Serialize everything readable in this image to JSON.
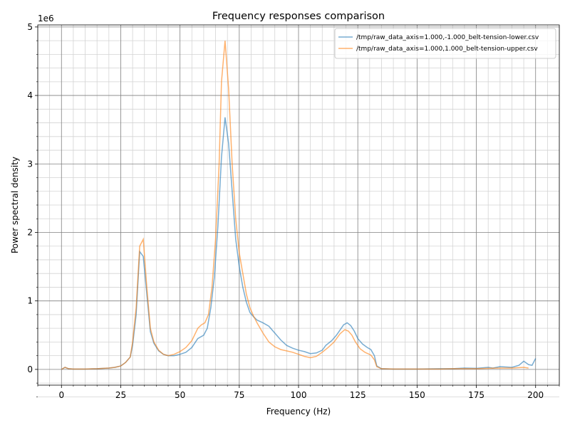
{
  "chart_data": {
    "type": "line",
    "title": "Frequency responses comparison",
    "x_label": "Frequency (Hz)",
    "y_label": "Power spectral density",
    "y_offset_label": "1e6",
    "xlim": [
      -10,
      210
    ],
    "xticks": [
      0,
      25,
      50,
      75,
      100,
      125,
      150,
      175,
      200
    ],
    "ylim": [
      -0.23,
      5.03
    ],
    "yticks": [
      0,
      1,
      2,
      3,
      4,
      5
    ],
    "grid": true,
    "minor_grid": true,
    "legend": "upper right",
    "line_alpha": 0.6,
    "series": [
      {
        "name": "/tmp/raw_data_axis=1.000,-1.000_belt-tension-lower.csv",
        "color": "#1f77b4",
        "x": [
          0,
          1.5,
          3,
          5,
          10,
          15,
          20,
          22.5,
          25,
          27,
          29,
          30,
          31.5,
          33,
          34.5,
          36,
          37.5,
          39,
          41,
          43,
          45,
          47.5,
          50,
          52.5,
          55,
          57.5,
          60,
          61.5,
          63,
          64.5,
          66,
          67.5,
          69,
          70.5,
          72,
          73.5,
          75,
          76.5,
          78,
          79.5,
          81,
          82.5,
          85,
          87.5,
          90,
          92.5,
          95,
          97.5,
          100,
          102.5,
          105,
          107.5,
          110,
          111.5,
          114,
          116,
          118,
          119,
          120.5,
          122,
          123.5,
          125,
          127,
          129,
          130.5,
          132,
          133,
          135,
          140,
          150,
          160,
          165,
          170,
          175,
          180,
          182,
          185,
          190,
          193,
          195,
          197,
          198.5,
          200
        ],
        "values": [
          0,
          0.03,
          0.01,
          0.005,
          0.005,
          0.01,
          0.02,
          0.03,
          0.05,
          0.1,
          0.18,
          0.35,
          0.8,
          1.72,
          1.65,
          1.1,
          0.55,
          0.38,
          0.27,
          0.22,
          0.2,
          0.2,
          0.22,
          0.25,
          0.32,
          0.45,
          0.5,
          0.6,
          0.9,
          1.35,
          2.1,
          3.1,
          3.68,
          3.3,
          2.6,
          1.9,
          1.5,
          1.2,
          0.98,
          0.83,
          0.77,
          0.72,
          0.68,
          0.63,
          0.53,
          0.43,
          0.35,
          0.31,
          0.28,
          0.26,
          0.23,
          0.24,
          0.28,
          0.35,
          0.42,
          0.5,
          0.6,
          0.65,
          0.68,
          0.64,
          0.56,
          0.45,
          0.37,
          0.32,
          0.29,
          0.2,
          0.05,
          0.01,
          0.005,
          0.005,
          0.01,
          0.01,
          0.02,
          0.015,
          0.03,
          0.02,
          0.04,
          0.03,
          0.06,
          0.12,
          0.07,
          0.06,
          0.16
        ]
      },
      {
        "name": "/tmp/raw_data_axis=1.000,1.000_belt-tension-upper.csv",
        "color": "#ff7f0e",
        "x": [
          0,
          1.5,
          3,
          5,
          10,
          15,
          20,
          22.5,
          25,
          27,
          29,
          30,
          31.5,
          33,
          34.5,
          36,
          37.5,
          39,
          41,
          43,
          45,
          47.5,
          50,
          52.5,
          55,
          57.5,
          59,
          60.5,
          62,
          63.5,
          65,
          66.5,
          67.5,
          69,
          70.5,
          72,
          73.5,
          75,
          76.5,
          78,
          79.5,
          81,
          82.5,
          85,
          87.5,
          90,
          92.5,
          95,
          97.5,
          100,
          102.5,
          105,
          107.5,
          110,
          112.5,
          115,
          117.5,
          119.5,
          121,
          122.5,
          124,
          126,
          128,
          130.5,
          132,
          133,
          135,
          140,
          150,
          160,
          165,
          170,
          175,
          180,
          185,
          190,
          195,
          197
        ],
        "values": [
          0,
          0.03,
          0.01,
          0.005,
          0.005,
          0.01,
          0.02,
          0.03,
          0.05,
          0.1,
          0.18,
          0.4,
          0.9,
          1.8,
          1.9,
          1.2,
          0.6,
          0.4,
          0.28,
          0.22,
          0.2,
          0.22,
          0.26,
          0.32,
          0.42,
          0.6,
          0.65,
          0.68,
          0.8,
          1.2,
          1.9,
          3.0,
          4.2,
          4.8,
          4.1,
          3.0,
          2.2,
          1.7,
          1.4,
          1.1,
          0.9,
          0.78,
          0.68,
          0.53,
          0.4,
          0.33,
          0.29,
          0.27,
          0.25,
          0.22,
          0.19,
          0.17,
          0.19,
          0.25,
          0.32,
          0.4,
          0.52,
          0.58,
          0.56,
          0.5,
          0.4,
          0.3,
          0.25,
          0.21,
          0.14,
          0.04,
          0.01,
          0.005,
          0.005,
          0.005,
          0.01,
          0.01,
          0.01,
          0.015,
          0.02,
          0.02,
          0.03,
          0.02
        ]
      }
    ]
  }
}
